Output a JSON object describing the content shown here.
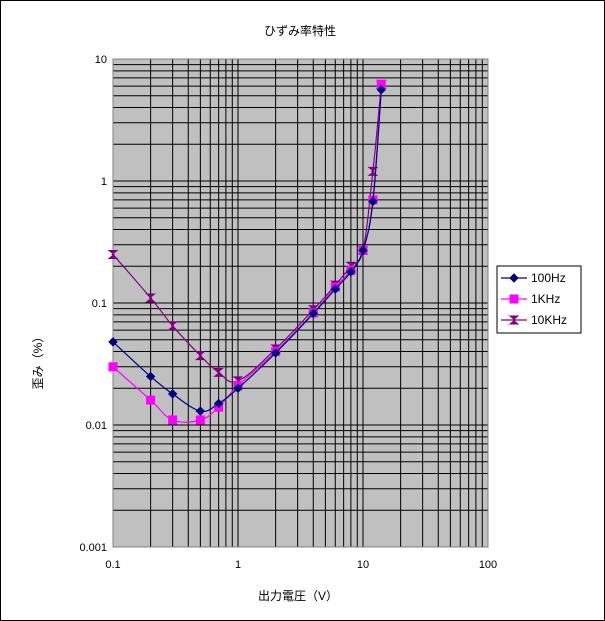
{
  "chart_data": {
    "type": "line",
    "title": "ひずみ率特性",
    "xlabel": "出力電圧（V）",
    "ylabel": "歪み（%）",
    "x_scale": "log",
    "y_scale": "log",
    "xlim": [
      0.1,
      100
    ],
    "ylim": [
      0.001,
      10
    ],
    "x_ticks": [
      "0.1",
      "1",
      "10",
      "100"
    ],
    "y_ticks": [
      "0.001",
      "0.01",
      "0.1",
      "1",
      "10"
    ],
    "grid": true,
    "legend_position": "right",
    "series": [
      {
        "name": "100Hz",
        "color": "#000080",
        "marker": "diamond",
        "x": [
          0.1,
          0.2,
          0.3,
          0.5,
          0.7,
          1,
          2,
          4,
          6,
          8,
          10,
          12,
          14
        ],
        "y": [
          0.048,
          0.025,
          0.018,
          0.013,
          0.015,
          0.02,
          0.039,
          0.082,
          0.13,
          0.18,
          0.27,
          0.68,
          5.6
        ]
      },
      {
        "name": "1KHz",
        "color": "#ff00ff",
        "marker": "square",
        "x": [
          0.1,
          0.2,
          0.3,
          0.5,
          0.7,
          1,
          2,
          4,
          6,
          8,
          10,
          12,
          14
        ],
        "y": [
          0.03,
          0.016,
          0.011,
          0.011,
          0.014,
          0.021,
          0.04,
          0.083,
          0.135,
          0.185,
          0.27,
          0.7,
          6.2
        ]
      },
      {
        "name": "10KHz",
        "color": "#800080",
        "marker": "hourglass",
        "x": [
          0.1,
          0.2,
          0.3,
          0.5,
          0.7,
          1,
          2,
          4,
          6,
          8,
          10,
          12,
          14
        ],
        "y": [
          0.25,
          0.11,
          0.065,
          0.037,
          0.027,
          0.023,
          0.042,
          0.088,
          0.14,
          0.2,
          0.27,
          1.2,
          6.2
        ]
      }
    ]
  }
}
